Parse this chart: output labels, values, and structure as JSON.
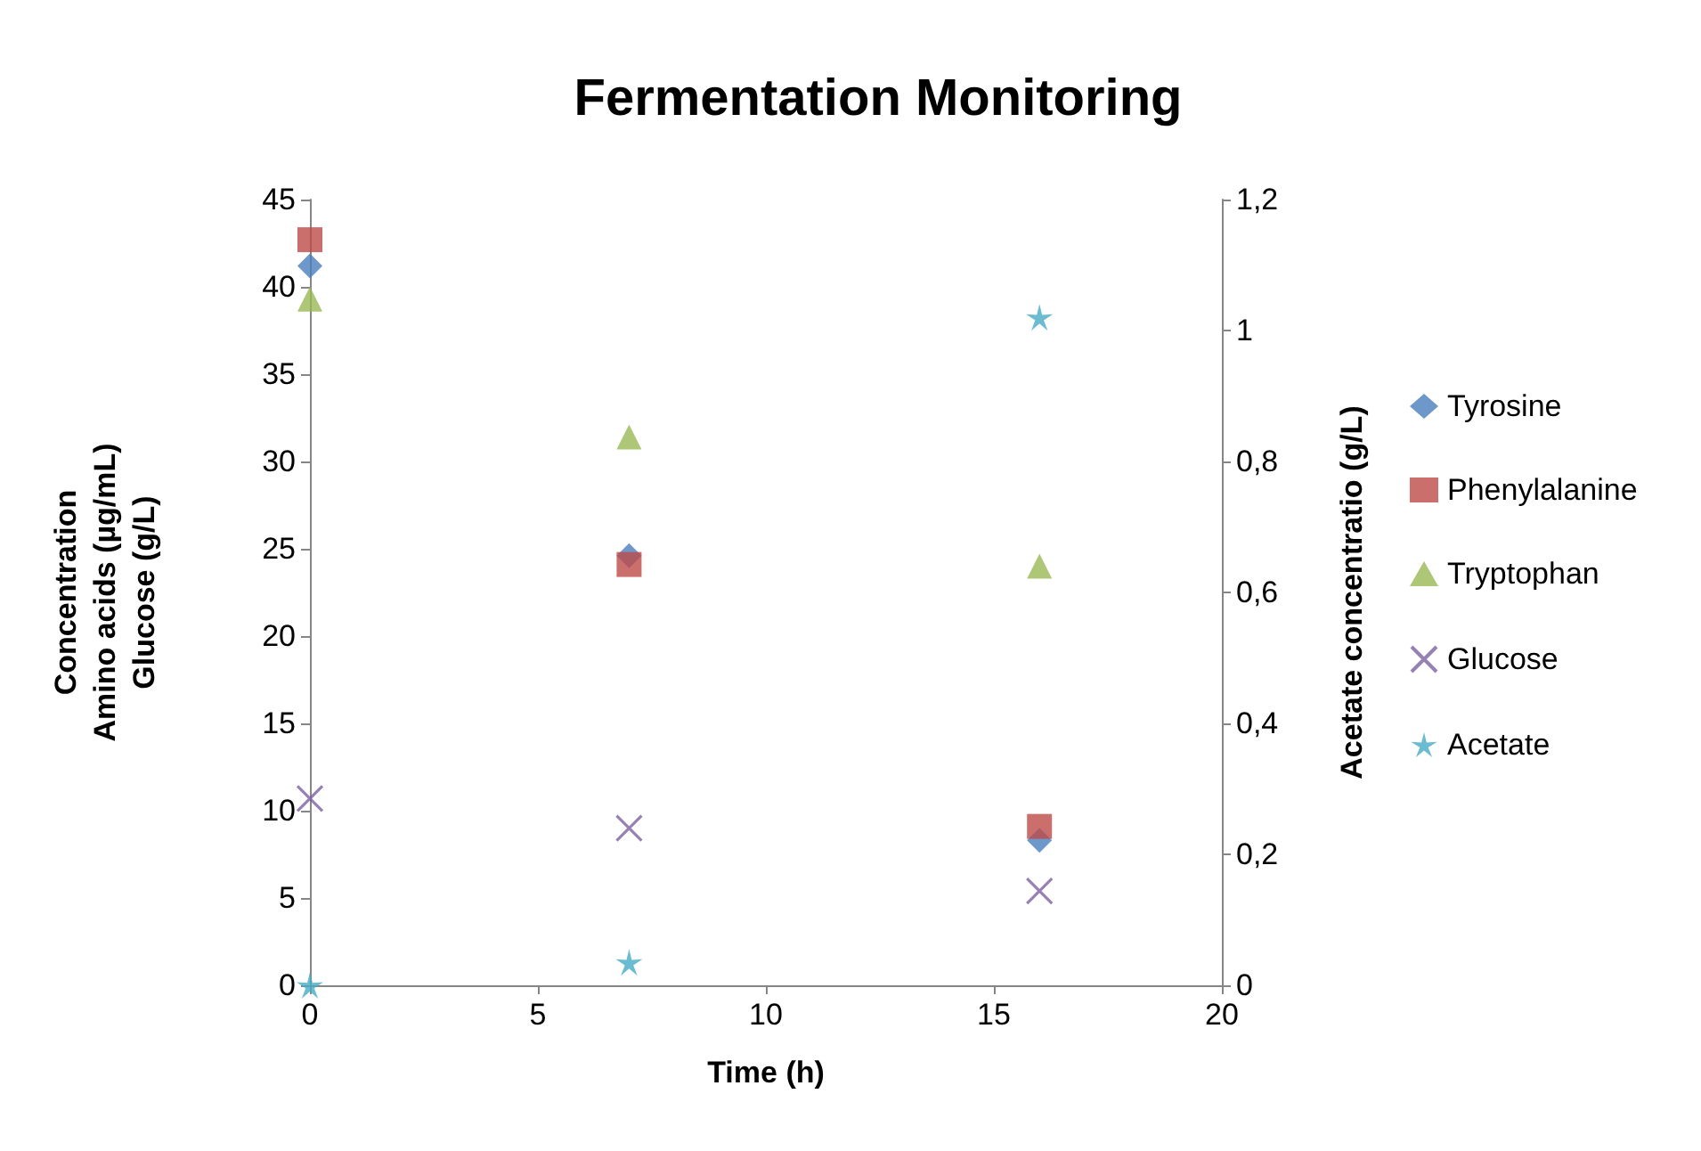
{
  "chart_data": {
    "type": "scatter",
    "title": "Fermentation Monitoring",
    "xlabel": "Time (h)",
    "ylabel": "Concentration\nAmino acids (µg/mL)\nGlucose (g/L)",
    "y2label": "Acetate concentratio (g/L)",
    "x": [
      0,
      7,
      16
    ],
    "xlim": [
      0,
      20
    ],
    "xticks": [
      0,
      5,
      10,
      15,
      20
    ],
    "ylim": [
      0,
      45
    ],
    "yticks": [
      0,
      5,
      10,
      15,
      20,
      25,
      30,
      35,
      40,
      45
    ],
    "y2lim": [
      0,
      1.2
    ],
    "y2ticks": [
      {
        "value": 0,
        "label": "0"
      },
      {
        "value": 0.2,
        "label": "0,2"
      },
      {
        "value": 0.4,
        "label": "0,4"
      },
      {
        "value": 0.6,
        "label": "0,6"
      },
      {
        "value": 0.8,
        "label": "0,8"
      },
      {
        "value": 1,
        "label": "1"
      },
      {
        "value": 1.2,
        "label": "1,2"
      }
    ],
    "grid": false,
    "legend": "right",
    "series": [
      {
        "name": "Tyrosine",
        "color": "#4a7ebb",
        "marker": "diamond",
        "values": [
          41.2,
          24.6,
          8.3
        ]
      },
      {
        "name": "Phenylalanine",
        "color": "#be4b48",
        "marker": "square",
        "values": [
          42.7,
          24.1,
          9.1
        ]
      },
      {
        "name": "Tryptophan",
        "color": "#98b954",
        "marker": "triangle",
        "values": [
          39.3,
          31.4,
          24.0
        ]
      },
      {
        "name": "Glucose",
        "color": "#7d60a0",
        "marker": "cross",
        "values": [
          10.7,
          9.0,
          5.4
        ]
      },
      {
        "name": "Acetate",
        "color": "#46aac5",
        "marker": "star",
        "axis": "y2",
        "values": [
          0,
          0.035,
          1.02
        ]
      }
    ]
  }
}
